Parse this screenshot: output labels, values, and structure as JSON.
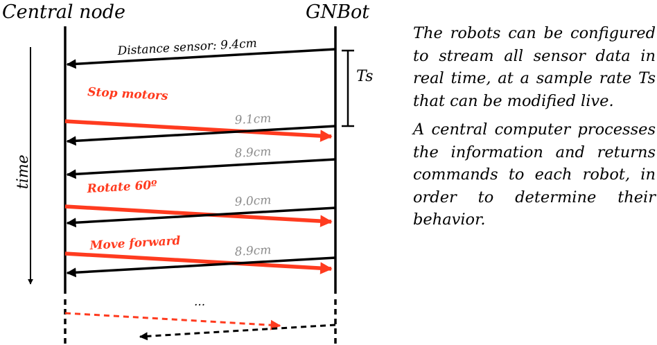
{
  "participants": {
    "left": "Central node",
    "right": "GNBot"
  },
  "axis": {
    "time_label": "time"
  },
  "interval": {
    "label": "Ts"
  },
  "messages": [
    {
      "direction": "to-central",
      "label": "Distance sensor: 9.4cm",
      "style": "black"
    },
    {
      "direction": "to-robot",
      "label": "Stop motors",
      "style": "red"
    },
    {
      "direction": "to-central",
      "label": "9.1cm",
      "style": "grey"
    },
    {
      "direction": "to-central",
      "label": "8.9cm",
      "style": "grey"
    },
    {
      "direction": "to-robot",
      "label": "Rotate 60º",
      "style": "red"
    },
    {
      "direction": "to-central",
      "label": "9.0cm",
      "style": "grey"
    },
    {
      "direction": "to-robot",
      "label": "Move forward",
      "style": "red"
    },
    {
      "direction": "to-central",
      "label": "8.9cm",
      "style": "grey"
    }
  ],
  "continuation": "...",
  "description": {
    "paragraph_1": "The robots can be configured to stream all sensor data in real time, at a sample rate Ts that can be modified live.",
    "paragraph_2": "A central computer processes the information and returns commands to each robot, in order to determine their behavior."
  },
  "colors": {
    "command": "#ff3b1f",
    "sensor": "#000000",
    "value_text": "#8c8c8c"
  }
}
